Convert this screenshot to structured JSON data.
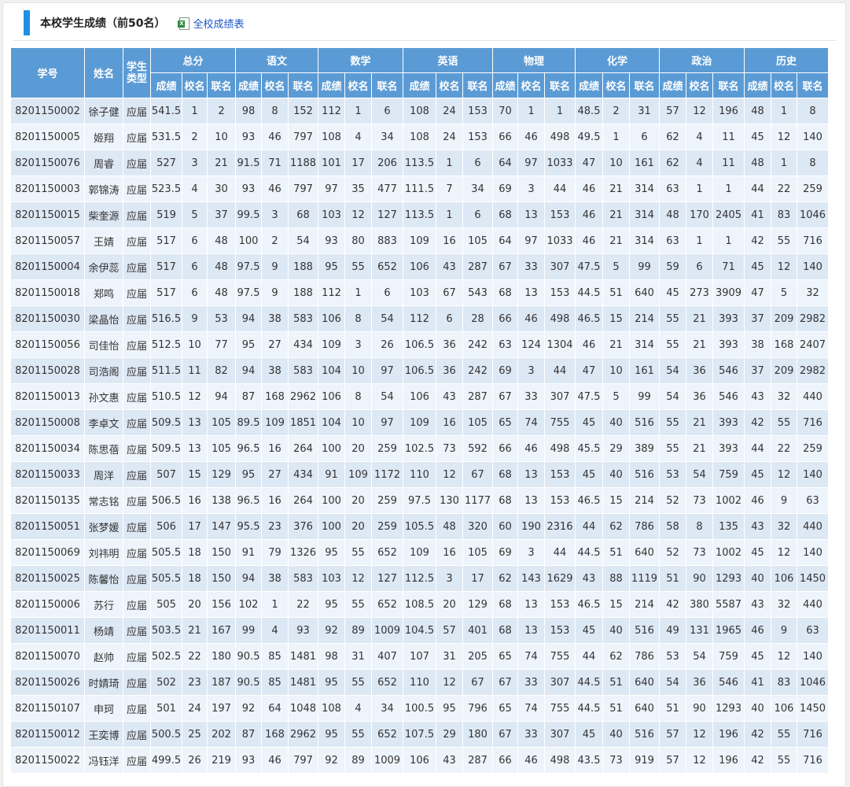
{
  "header": {
    "title": "本校学生成绩（前50名）",
    "export_link": "全校成绩表",
    "export_icon": "excel-file-icon"
  },
  "colors": {
    "accent": "#1e90e6",
    "header_bg": "#5b9bd5",
    "row_odd": "#dde8f5",
    "row_even": "#eef4fb",
    "link": "#1a55c8"
  },
  "table": {
    "fixed_headers": [
      "学号",
      "姓名",
      "学生类型"
    ],
    "subjects": [
      "总分",
      "语文",
      "数学",
      "英语",
      "物理",
      "化学",
      "政治",
      "历史"
    ],
    "sub_headers": [
      "成绩",
      "校名",
      "联名"
    ],
    "rows": [
      [
        "8201150002",
        "徐子健",
        "应届",
        "541.5",
        "1",
        "2",
        "98",
        "8",
        "152",
        "112",
        "1",
        "6",
        "108",
        "24",
        "153",
        "70",
        "1",
        "1",
        "48.5",
        "2",
        "31",
        "57",
        "12",
        "196",
        "48",
        "1",
        "8"
      ],
      [
        "8201150005",
        "姬翔",
        "应届",
        "531.5",
        "2",
        "10",
        "93",
        "46",
        "797",
        "108",
        "4",
        "34",
        "108",
        "24",
        "153",
        "66",
        "46",
        "498",
        "49.5",
        "1",
        "6",
        "62",
        "4",
        "11",
        "45",
        "12",
        "140"
      ],
      [
        "8201150076",
        "周睿",
        "应届",
        "527",
        "3",
        "21",
        "91.5",
        "71",
        "1188",
        "101",
        "17",
        "206",
        "113.5",
        "1",
        "6",
        "64",
        "97",
        "1033",
        "47",
        "10",
        "161",
        "62",
        "4",
        "11",
        "48",
        "1",
        "8"
      ],
      [
        "8201150003",
        "郭锦涛",
        "应届",
        "523.5",
        "4",
        "30",
        "93",
        "46",
        "797",
        "97",
        "35",
        "477",
        "111.5",
        "7",
        "34",
        "69",
        "3",
        "44",
        "46",
        "21",
        "314",
        "63",
        "1",
        "1",
        "44",
        "22",
        "259"
      ],
      [
        "8201150015",
        "柴奎源",
        "应届",
        "519",
        "5",
        "37",
        "99.5",
        "3",
        "68",
        "103",
        "12",
        "127",
        "113.5",
        "1",
        "6",
        "68",
        "13",
        "153",
        "46",
        "21",
        "314",
        "48",
        "170",
        "2405",
        "41",
        "83",
        "1046"
      ],
      [
        "8201150057",
        "王婧",
        "应届",
        "517",
        "6",
        "48",
        "100",
        "2",
        "54",
        "93",
        "80",
        "883",
        "109",
        "16",
        "105",
        "64",
        "97",
        "1033",
        "46",
        "21",
        "314",
        "63",
        "1",
        "1",
        "42",
        "55",
        "716"
      ],
      [
        "8201150004",
        "余伊蕊",
        "应届",
        "517",
        "6",
        "48",
        "97.5",
        "9",
        "188",
        "95",
        "55",
        "652",
        "106",
        "43",
        "287",
        "67",
        "33",
        "307",
        "47.5",
        "5",
        "99",
        "59",
        "6",
        "71",
        "45",
        "12",
        "140"
      ],
      [
        "8201150018",
        "郑鸣",
        "应届",
        "517",
        "6",
        "48",
        "97.5",
        "9",
        "188",
        "112",
        "1",
        "6",
        "103",
        "67",
        "543",
        "68",
        "13",
        "153",
        "44.5",
        "51",
        "640",
        "45",
        "273",
        "3909",
        "47",
        "5",
        "32"
      ],
      [
        "8201150030",
        "梁晶怡",
        "应届",
        "516.5",
        "9",
        "53",
        "94",
        "38",
        "583",
        "106",
        "8",
        "54",
        "112",
        "6",
        "28",
        "66",
        "46",
        "498",
        "46.5",
        "15",
        "214",
        "55",
        "21",
        "393",
        "37",
        "209",
        "2982"
      ],
      [
        "8201150056",
        "司佳怡",
        "应届",
        "512.5",
        "10",
        "77",
        "95",
        "27",
        "434",
        "109",
        "3",
        "26",
        "106.5",
        "36",
        "242",
        "63",
        "124",
        "1304",
        "46",
        "21",
        "314",
        "55",
        "21",
        "393",
        "38",
        "168",
        "2407"
      ],
      [
        "8201150028",
        "司浩阁",
        "应届",
        "511.5",
        "11",
        "82",
        "94",
        "38",
        "583",
        "104",
        "10",
        "97",
        "106.5",
        "36",
        "242",
        "69",
        "3",
        "44",
        "47",
        "10",
        "161",
        "54",
        "36",
        "546",
        "37",
        "209",
        "2982"
      ],
      [
        "8201150013",
        "孙文惠",
        "应届",
        "510.5",
        "12",
        "94",
        "87",
        "168",
        "2962",
        "106",
        "8",
        "54",
        "106",
        "43",
        "287",
        "67",
        "33",
        "307",
        "47.5",
        "5",
        "99",
        "54",
        "36",
        "546",
        "43",
        "32",
        "440"
      ],
      [
        "8201150008",
        "李卓文",
        "应届",
        "509.5",
        "13",
        "105",
        "89.5",
        "109",
        "1851",
        "104",
        "10",
        "97",
        "109",
        "16",
        "105",
        "65",
        "74",
        "755",
        "45",
        "40",
        "516",
        "55",
        "21",
        "393",
        "42",
        "55",
        "716"
      ],
      [
        "8201150034",
        "陈思蓓",
        "应届",
        "509.5",
        "13",
        "105",
        "96.5",
        "16",
        "264",
        "100",
        "20",
        "259",
        "102.5",
        "73",
        "592",
        "66",
        "46",
        "498",
        "45.5",
        "29",
        "389",
        "55",
        "21",
        "393",
        "44",
        "22",
        "259"
      ],
      [
        "8201150033",
        "周洋",
        "应届",
        "507",
        "15",
        "129",
        "95",
        "27",
        "434",
        "91",
        "109",
        "1172",
        "110",
        "12",
        "67",
        "68",
        "13",
        "153",
        "45",
        "40",
        "516",
        "53",
        "54",
        "759",
        "45",
        "12",
        "140"
      ],
      [
        "8201150135",
        "常志铭",
        "应届",
        "506.5",
        "16",
        "138",
        "96.5",
        "16",
        "264",
        "100",
        "20",
        "259",
        "97.5",
        "130",
        "1177",
        "68",
        "13",
        "153",
        "46.5",
        "15",
        "214",
        "52",
        "73",
        "1002",
        "46",
        "9",
        "63"
      ],
      [
        "8201150051",
        "张梦媛",
        "应届",
        "506",
        "17",
        "147",
        "95.5",
        "23",
        "376",
        "100",
        "20",
        "259",
        "105.5",
        "48",
        "320",
        "60",
        "190",
        "2316",
        "44",
        "62",
        "786",
        "58",
        "8",
        "135",
        "43",
        "32",
        "440"
      ],
      [
        "8201150069",
        "刘祎明",
        "应届",
        "505.5",
        "18",
        "150",
        "91",
        "79",
        "1326",
        "95",
        "55",
        "652",
        "109",
        "16",
        "105",
        "69",
        "3",
        "44",
        "44.5",
        "51",
        "640",
        "52",
        "73",
        "1002",
        "45",
        "12",
        "140"
      ],
      [
        "8201150025",
        "陈馨怡",
        "应届",
        "505.5",
        "18",
        "150",
        "94",
        "38",
        "583",
        "103",
        "12",
        "127",
        "112.5",
        "3",
        "17",
        "62",
        "143",
        "1629",
        "43",
        "88",
        "1119",
        "51",
        "90",
        "1293",
        "40",
        "106",
        "1450"
      ],
      [
        "8201150006",
        "苏行",
        "应届",
        "505",
        "20",
        "156",
        "102",
        "1",
        "22",
        "95",
        "55",
        "652",
        "108.5",
        "20",
        "129",
        "68",
        "13",
        "153",
        "46.5",
        "15",
        "214",
        "42",
        "380",
        "5587",
        "43",
        "32",
        "440"
      ],
      [
        "8201150011",
        "杨靖",
        "应届",
        "503.5",
        "21",
        "167",
        "99",
        "4",
        "93",
        "92",
        "89",
        "1009",
        "104.5",
        "57",
        "401",
        "68",
        "13",
        "153",
        "45",
        "40",
        "516",
        "49",
        "131",
        "1965",
        "46",
        "9",
        "63"
      ],
      [
        "8201150070",
        "赵帅",
        "应届",
        "502.5",
        "22",
        "180",
        "90.5",
        "85",
        "1481",
        "98",
        "31",
        "407",
        "107",
        "31",
        "205",
        "65",
        "74",
        "755",
        "44",
        "62",
        "786",
        "53",
        "54",
        "759",
        "45",
        "12",
        "140"
      ],
      [
        "8201150026",
        "时婧琦",
        "应届",
        "502",
        "23",
        "187",
        "90.5",
        "85",
        "1481",
        "95",
        "55",
        "652",
        "110",
        "12",
        "67",
        "67",
        "33",
        "307",
        "44.5",
        "51",
        "640",
        "54",
        "36",
        "546",
        "41",
        "83",
        "1046"
      ],
      [
        "8201150107",
        "申珂",
        "应届",
        "501",
        "24",
        "197",
        "92",
        "64",
        "1048",
        "108",
        "4",
        "34",
        "100.5",
        "95",
        "796",
        "65",
        "74",
        "755",
        "44.5",
        "51",
        "640",
        "51",
        "90",
        "1293",
        "40",
        "106",
        "1450"
      ],
      [
        "8201150012",
        "王奕博",
        "应届",
        "500.5",
        "25",
        "202",
        "87",
        "168",
        "2962",
        "95",
        "55",
        "652",
        "107.5",
        "29",
        "180",
        "67",
        "33",
        "307",
        "45",
        "40",
        "516",
        "57",
        "12",
        "196",
        "42",
        "55",
        "716"
      ],
      [
        "8201150022",
        "冯钰洋",
        "应届",
        "499.5",
        "26",
        "219",
        "93",
        "46",
        "797",
        "92",
        "89",
        "1009",
        "106",
        "43",
        "287",
        "66",
        "46",
        "498",
        "43.5",
        "73",
        "919",
        "57",
        "12",
        "196",
        "42",
        "55",
        "716"
      ]
    ]
  }
}
